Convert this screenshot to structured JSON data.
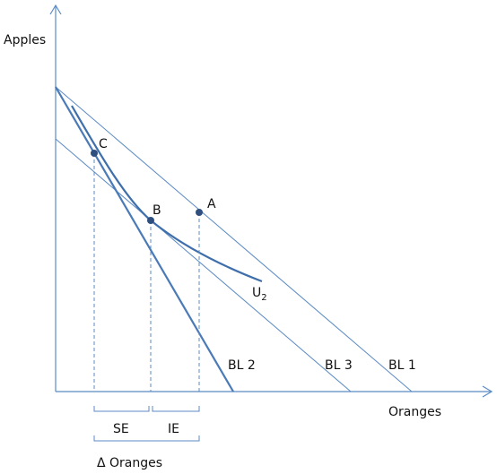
{
  "diagram": {
    "y_axis_label": "Apples",
    "x_axis_label": "Oranges",
    "curve_label_base": "U",
    "curve_label_sub": "2",
    "points": [
      {
        "id": "C",
        "label": "C"
      },
      {
        "id": "B",
        "label": "B"
      },
      {
        "id": "A",
        "label": "A"
      }
    ],
    "lines": [
      {
        "id": "bl2",
        "label": "BL 2"
      },
      {
        "id": "bl3",
        "label": "BL 3"
      },
      {
        "id": "bl1",
        "label": "BL 1"
      }
    ],
    "brackets": {
      "substitution_effect": "SE",
      "income_effect": "IE",
      "total_change": "Δ Oranges"
    }
  },
  "colors": {
    "line_color": "#4a7ab7",
    "curve_color": "#3f6fab",
    "point_color": "#2f4f7f",
    "axis_color": "#5b8bc4",
    "text_color": "#111111"
  }
}
